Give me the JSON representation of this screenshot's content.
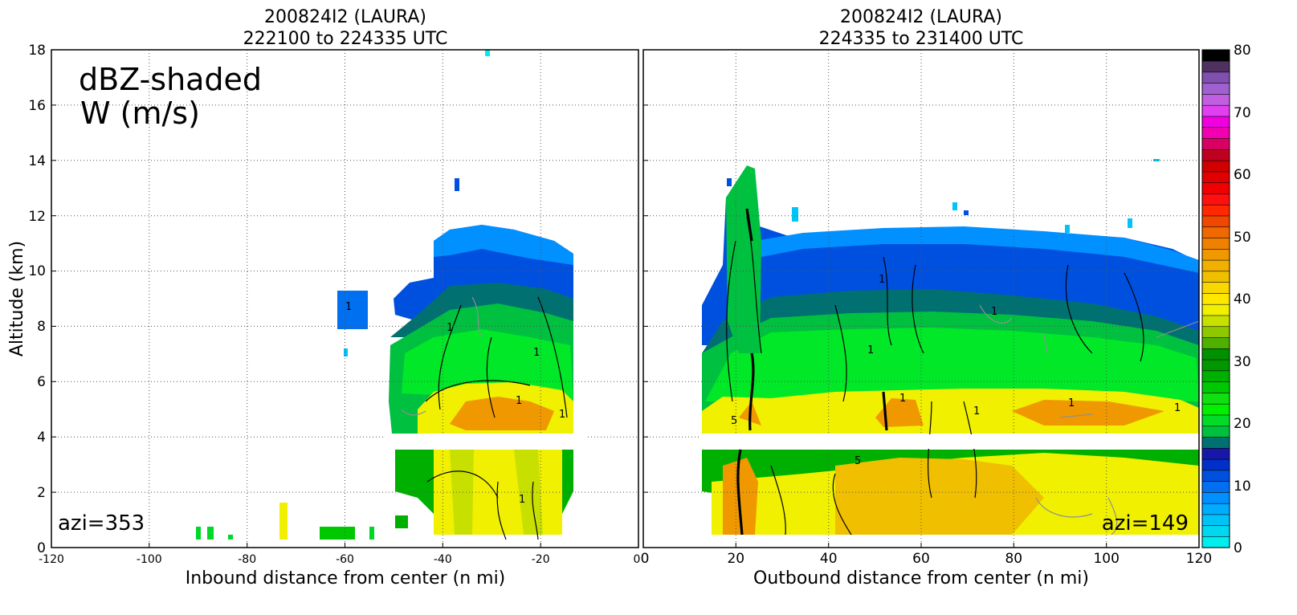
{
  "chart_data": [
    {
      "type": "heatmap",
      "panel": "left",
      "title_line1": "200824I2 (LAURA)",
      "title_line2": "222100 to 224335 UTC",
      "xlabel": "Inbound distance from center (n mi)",
      "ylabel": "Altitude (km)",
      "xlim": [
        -120,
        0
      ],
      "ylim": [
        0,
        18
      ],
      "xticks": [
        -120,
        -100,
        -80,
        -60,
        -40,
        -20,
        0
      ],
      "yticks": [
        0,
        2,
        4,
        6,
        8,
        10,
        12,
        14,
        16,
        18
      ],
      "grid": true,
      "annotation_line1": "dBZ-shaded",
      "annotation_line2": "W (m/s)",
      "azimuth_label": "azi=353",
      "contour_labels": [
        "1",
        "1",
        "1",
        "1",
        "1",
        "1"
      ],
      "echo_region": {
        "x_start": -52,
        "x_end": -14,
        "top_km": 11.5,
        "gap_km": [
          3.6,
          4.2
        ],
        "bright_band_km": 5
      }
    },
    {
      "type": "heatmap",
      "panel": "right",
      "title_line1": "200824I2 (LAURA)",
      "title_line2": "224335 to 231400 UTC",
      "xlabel": "Outbound distance from center (n mi)",
      "xlim": [
        0,
        120
      ],
      "ylim": [
        0,
        18
      ],
      "xticks": [
        0,
        20,
        40,
        60,
        80,
        100,
        120
      ],
      "grid": true,
      "azimuth_label": "azi=149",
      "contour_labels": [
        "1",
        "1",
        "1",
        "1",
        "1",
        "5",
        "5",
        "1",
        "1"
      ],
      "echo_region": {
        "x_start": 13,
        "x_end": 120,
        "top_km": 11,
        "gap_km": [
          3.6,
          4.2
        ],
        "bright_band_km": 5
      }
    }
  ],
  "colorbar": {
    "ticks": [
      0,
      10,
      20,
      30,
      40,
      50,
      60,
      70,
      80
    ],
    "colors": [
      "#00eeee",
      "#00d8f0",
      "#00c4f8",
      "#00acff",
      "#0090ff",
      "#0070f0",
      "#0050e0",
      "#0030c8",
      "#1818a8",
      "#007070",
      "#00c040",
      "#00dc28",
      "#00f000",
      "#10e010",
      "#00c800",
      "#00b000",
      "#009800",
      "#009000",
      "#50b000",
      "#90c800",
      "#c8e000",
      "#f0f000",
      "#ffe800",
      "#f8d800",
      "#f0c000",
      "#f0b000",
      "#f09800",
      "#f08000",
      "#f06800",
      "#f04800",
      "#ff2800",
      "#ff1010",
      "#f00000",
      "#e00000",
      "#d00000",
      "#c00020",
      "#d80060",
      "#f000b0",
      "#f000e0",
      "#e040f0",
      "#c060e0",
      "#a060d0",
      "#8050b0",
      "#503060",
      "#000000"
    ]
  }
}
